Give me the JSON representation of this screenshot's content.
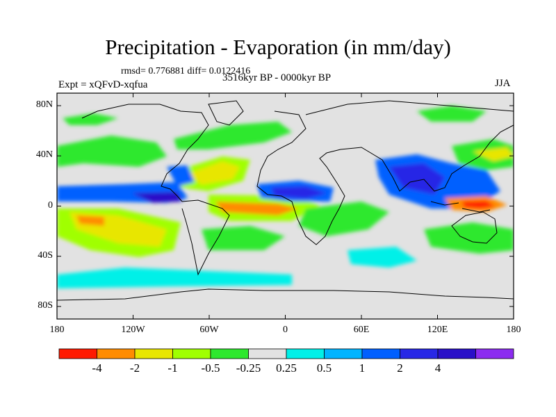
{
  "title": "Precipitation - Evaporation (in mm/day)",
  "stats": "rmsd= 0.776881 diff= 0.0122416",
  "experiment": "Expt = xQFvD-xqfua",
  "period": "3516kyr BP - 0000kyr BP",
  "season": "JJA",
  "map": {
    "lon_range": [
      -180,
      180
    ],
    "lat_range": [
      -90,
      90
    ],
    "y_ticks": [
      {
        "lat": 80,
        "label": "80N"
      },
      {
        "lat": 40,
        "label": "40N"
      },
      {
        "lat": 0,
        "label": "0"
      },
      {
        "lat": -40,
        "label": "40S"
      },
      {
        "lat": -80,
        "label": "80S"
      }
    ],
    "x_ticks": [
      {
        "lon": -180,
        "label": "180"
      },
      {
        "lon": -120,
        "label": "120W"
      },
      {
        "lon": -60,
        "label": "60W"
      },
      {
        "lon": 0,
        "label": "0"
      },
      {
        "lon": 60,
        "label": "60E"
      },
      {
        "lon": 120,
        "label": "120E"
      },
      {
        "lon": 180,
        "label": "180"
      }
    ]
  },
  "colorbar": {
    "colors": [
      "#ff1a00",
      "#ff8c00",
      "#e8e600",
      "#a0ff00",
      "#2ee82e",
      "#e2e2e2",
      "#00f0e8",
      "#00b4ff",
      "#0060ff",
      "#2828e6",
      "#2a10c8",
      "#8c2cf0"
    ],
    "labels": [
      "-4",
      "-2",
      "-1",
      "-0.5",
      "-0.25",
      "0.25",
      "0.5",
      "1",
      "2",
      "4"
    ]
  },
  "colors": {
    "background": "#e2e2e2",
    "coast": "#000000"
  }
}
